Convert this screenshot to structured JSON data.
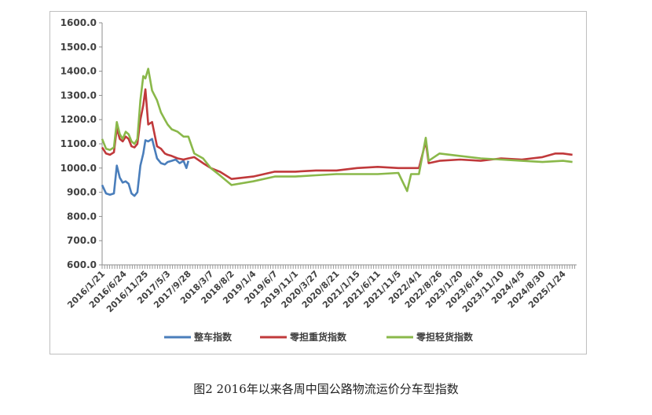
{
  "caption": "图2 2016年以来各周中国公路物流运价分车型指数",
  "chart_data": {
    "type": "line",
    "title": "",
    "xlabel": "",
    "ylabel": "",
    "ylim": [
      600,
      1600
    ],
    "yticks": [
      "600.0",
      "700.0",
      "800.0",
      "900.0",
      "1000.0",
      "1100.0",
      "1200.0",
      "1300.0",
      "1400.0",
      "1500.0",
      "1600.0"
    ],
    "xticks": [
      "2016/1/21",
      "2016/6/24",
      "2016/11/25",
      "2017/5/3",
      "2017/9/28",
      "2018/3/7",
      "2018/8/2",
      "2019/1/4",
      "2019/6/7",
      "2019/11/1",
      "2020/3/27",
      "2020/8/21",
      "2021/1/15",
      "2021/6/11",
      "2021/11/5",
      "2022/4/1",
      "2022/8/26",
      "2023/1/20",
      "2023/6/16",
      "2023/11/10",
      "2024/4/5",
      "2024/8/30",
      "2025/1/24"
    ],
    "legend": "bottom",
    "grid": false,
    "series": [
      {
        "name": "整车指数",
        "color": "#4a7ebb",
        "points": [
          [
            "2016/1/21",
            930
          ],
          [
            "2016/2/18",
            895
          ],
          [
            "2016/3/17",
            890
          ],
          [
            "2016/4/14",
            895
          ],
          [
            "2016/5/5",
            1010
          ],
          [
            "2016/5/26",
            960
          ],
          [
            "2016/6/16",
            940
          ],
          [
            "2016/7/7",
            945
          ],
          [
            "2016/7/28",
            935
          ],
          [
            "2016/8/18",
            895
          ],
          [
            "2016/9/8",
            885
          ],
          [
            "2016/9/29",
            900
          ],
          [
            "2016/10/20",
            1010
          ],
          [
            "2016/11/10",
            1060
          ],
          [
            "2016/11/25",
            1115
          ],
          [
            "2016/12/15",
            1110
          ],
          [
            "2017/1/12",
            1120
          ],
          [
            "2017/2/16",
            1040
          ],
          [
            "2017/3/16",
            1020
          ],
          [
            "2017/4/13",
            1015
          ],
          [
            "2017/5/3",
            1025
          ],
          [
            "2017/6/1",
            1030
          ],
          [
            "2017/6/29",
            1035
          ],
          [
            "2017/7/27",
            1020
          ],
          [
            "2017/8/24",
            1030
          ],
          [
            "2017/9/14",
            1000
          ],
          [
            "2017/9/28",
            1030
          ]
        ]
      },
      {
        "name": "零担重货指数",
        "color": "#c0393b",
        "points": [
          [
            "2016/1/21",
            1085
          ],
          [
            "2016/2/18",
            1060
          ],
          [
            "2016/3/17",
            1055
          ],
          [
            "2016/4/14",
            1065
          ],
          [
            "2016/5/5",
            1165
          ],
          [
            "2016/5/26",
            1120
          ],
          [
            "2016/6/16",
            1110
          ],
          [
            "2016/7/7",
            1130
          ],
          [
            "2016/7/28",
            1120
          ],
          [
            "2016/8/18",
            1090
          ],
          [
            "2016/9/8",
            1085
          ],
          [
            "2016/9/29",
            1100
          ],
          [
            "2016/10/20",
            1200
          ],
          [
            "2016/11/10",
            1260
          ],
          [
            "2016/11/25",
            1325
          ],
          [
            "2016/12/15",
            1180
          ],
          [
            "2017/1/12",
            1190
          ],
          [
            "2017/2/16",
            1090
          ],
          [
            "2017/3/16",
            1080
          ],
          [
            "2017/4/13",
            1060
          ],
          [
            "2017/5/3",
            1055
          ],
          [
            "2017/6/1",
            1050
          ],
          [
            "2017/7/13",
            1040
          ],
          [
            "2017/8/24",
            1035
          ],
          [
            "2017/9/28",
            1040
          ],
          [
            "2017/11/9",
            1045
          ],
          [
            "2018/1/11",
            1020
          ],
          [
            "2018/3/7",
            1000
          ],
          [
            "2018/5/10",
            985
          ],
          [
            "2018/8/2",
            955
          ],
          [
            "2019/1/4",
            965
          ],
          [
            "2019/6/7",
            985
          ],
          [
            "2019/11/1",
            985
          ],
          [
            "2020/3/27",
            990
          ],
          [
            "2020/8/21",
            990
          ],
          [
            "2021/1/15",
            1000
          ],
          [
            "2021/6/11",
            1005
          ],
          [
            "2021/11/5",
            1000
          ],
          [
            "2022/4/1",
            1000
          ],
          [
            "2022/5/20",
            1110
          ],
          [
            "2022/6/10",
            1020
          ],
          [
            "2022/8/26",
            1030
          ],
          [
            "2023/1/20",
            1035
          ],
          [
            "2023/6/16",
            1030
          ],
          [
            "2023/11/10",
            1040
          ],
          [
            "2024/4/5",
            1035
          ],
          [
            "2024/8/30",
            1045
          ],
          [
            "2024/12/1",
            1060
          ],
          [
            "2025/1/24",
            1060
          ],
          [
            "2025/4/1",
            1055
          ]
        ]
      },
      {
        "name": "零担轻货指数",
        "color": "#8ab84a",
        "points": [
          [
            "2016/1/21",
            1120
          ],
          [
            "2016/2/18",
            1080
          ],
          [
            "2016/3/17",
            1075
          ],
          [
            "2016/4/14",
            1085
          ],
          [
            "2016/5/5",
            1190
          ],
          [
            "2016/5/26",
            1140
          ],
          [
            "2016/6/16",
            1120
          ],
          [
            "2016/7/7",
            1150
          ],
          [
            "2016/7/28",
            1140
          ],
          [
            "2016/8/18",
            1110
          ],
          [
            "2016/9/8",
            1100
          ],
          [
            "2016/9/29",
            1120
          ],
          [
            "2016/10/20",
            1280
          ],
          [
            "2016/11/10",
            1380
          ],
          [
            "2016/11/25",
            1370
          ],
          [
            "2016/12/15",
            1410
          ],
          [
            "2017/1/12",
            1320
          ],
          [
            "2017/2/16",
            1280
          ],
          [
            "2017/3/16",
            1230
          ],
          [
            "2017/4/13",
            1200
          ],
          [
            "2017/5/3",
            1180
          ],
          [
            "2017/6/1",
            1160
          ],
          [
            "2017/7/13",
            1150
          ],
          [
            "2017/8/24",
            1130
          ],
          [
            "2017/9/28",
            1130
          ],
          [
            "2017/11/9",
            1060
          ],
          [
            "2018/1/11",
            1040
          ],
          [
            "2018/3/7",
            1000
          ],
          [
            "2018/5/10",
            970
          ],
          [
            "2018/8/2",
            930
          ],
          [
            "2019/1/4",
            945
          ],
          [
            "2019/6/7",
            965
          ],
          [
            "2019/11/1",
            965
          ],
          [
            "2020/3/27",
            970
          ],
          [
            "2020/8/21",
            975
          ],
          [
            "2021/1/15",
            975
          ],
          [
            "2021/6/11",
            975
          ],
          [
            "2021/11/5",
            980
          ],
          [
            "2022/1/7",
            905
          ],
          [
            "2022/2/4",
            975
          ],
          [
            "2022/4/1",
            975
          ],
          [
            "2022/5/20",
            1125
          ],
          [
            "2022/6/10",
            1030
          ],
          [
            "2022/8/26",
            1060
          ],
          [
            "2023/1/20",
            1050
          ],
          [
            "2023/6/16",
            1040
          ],
          [
            "2023/11/10",
            1035
          ],
          [
            "2024/4/5",
            1030
          ],
          [
            "2024/8/30",
            1025
          ],
          [
            "2025/1/24",
            1030
          ],
          [
            "2025/4/1",
            1025
          ]
        ]
      }
    ]
  }
}
